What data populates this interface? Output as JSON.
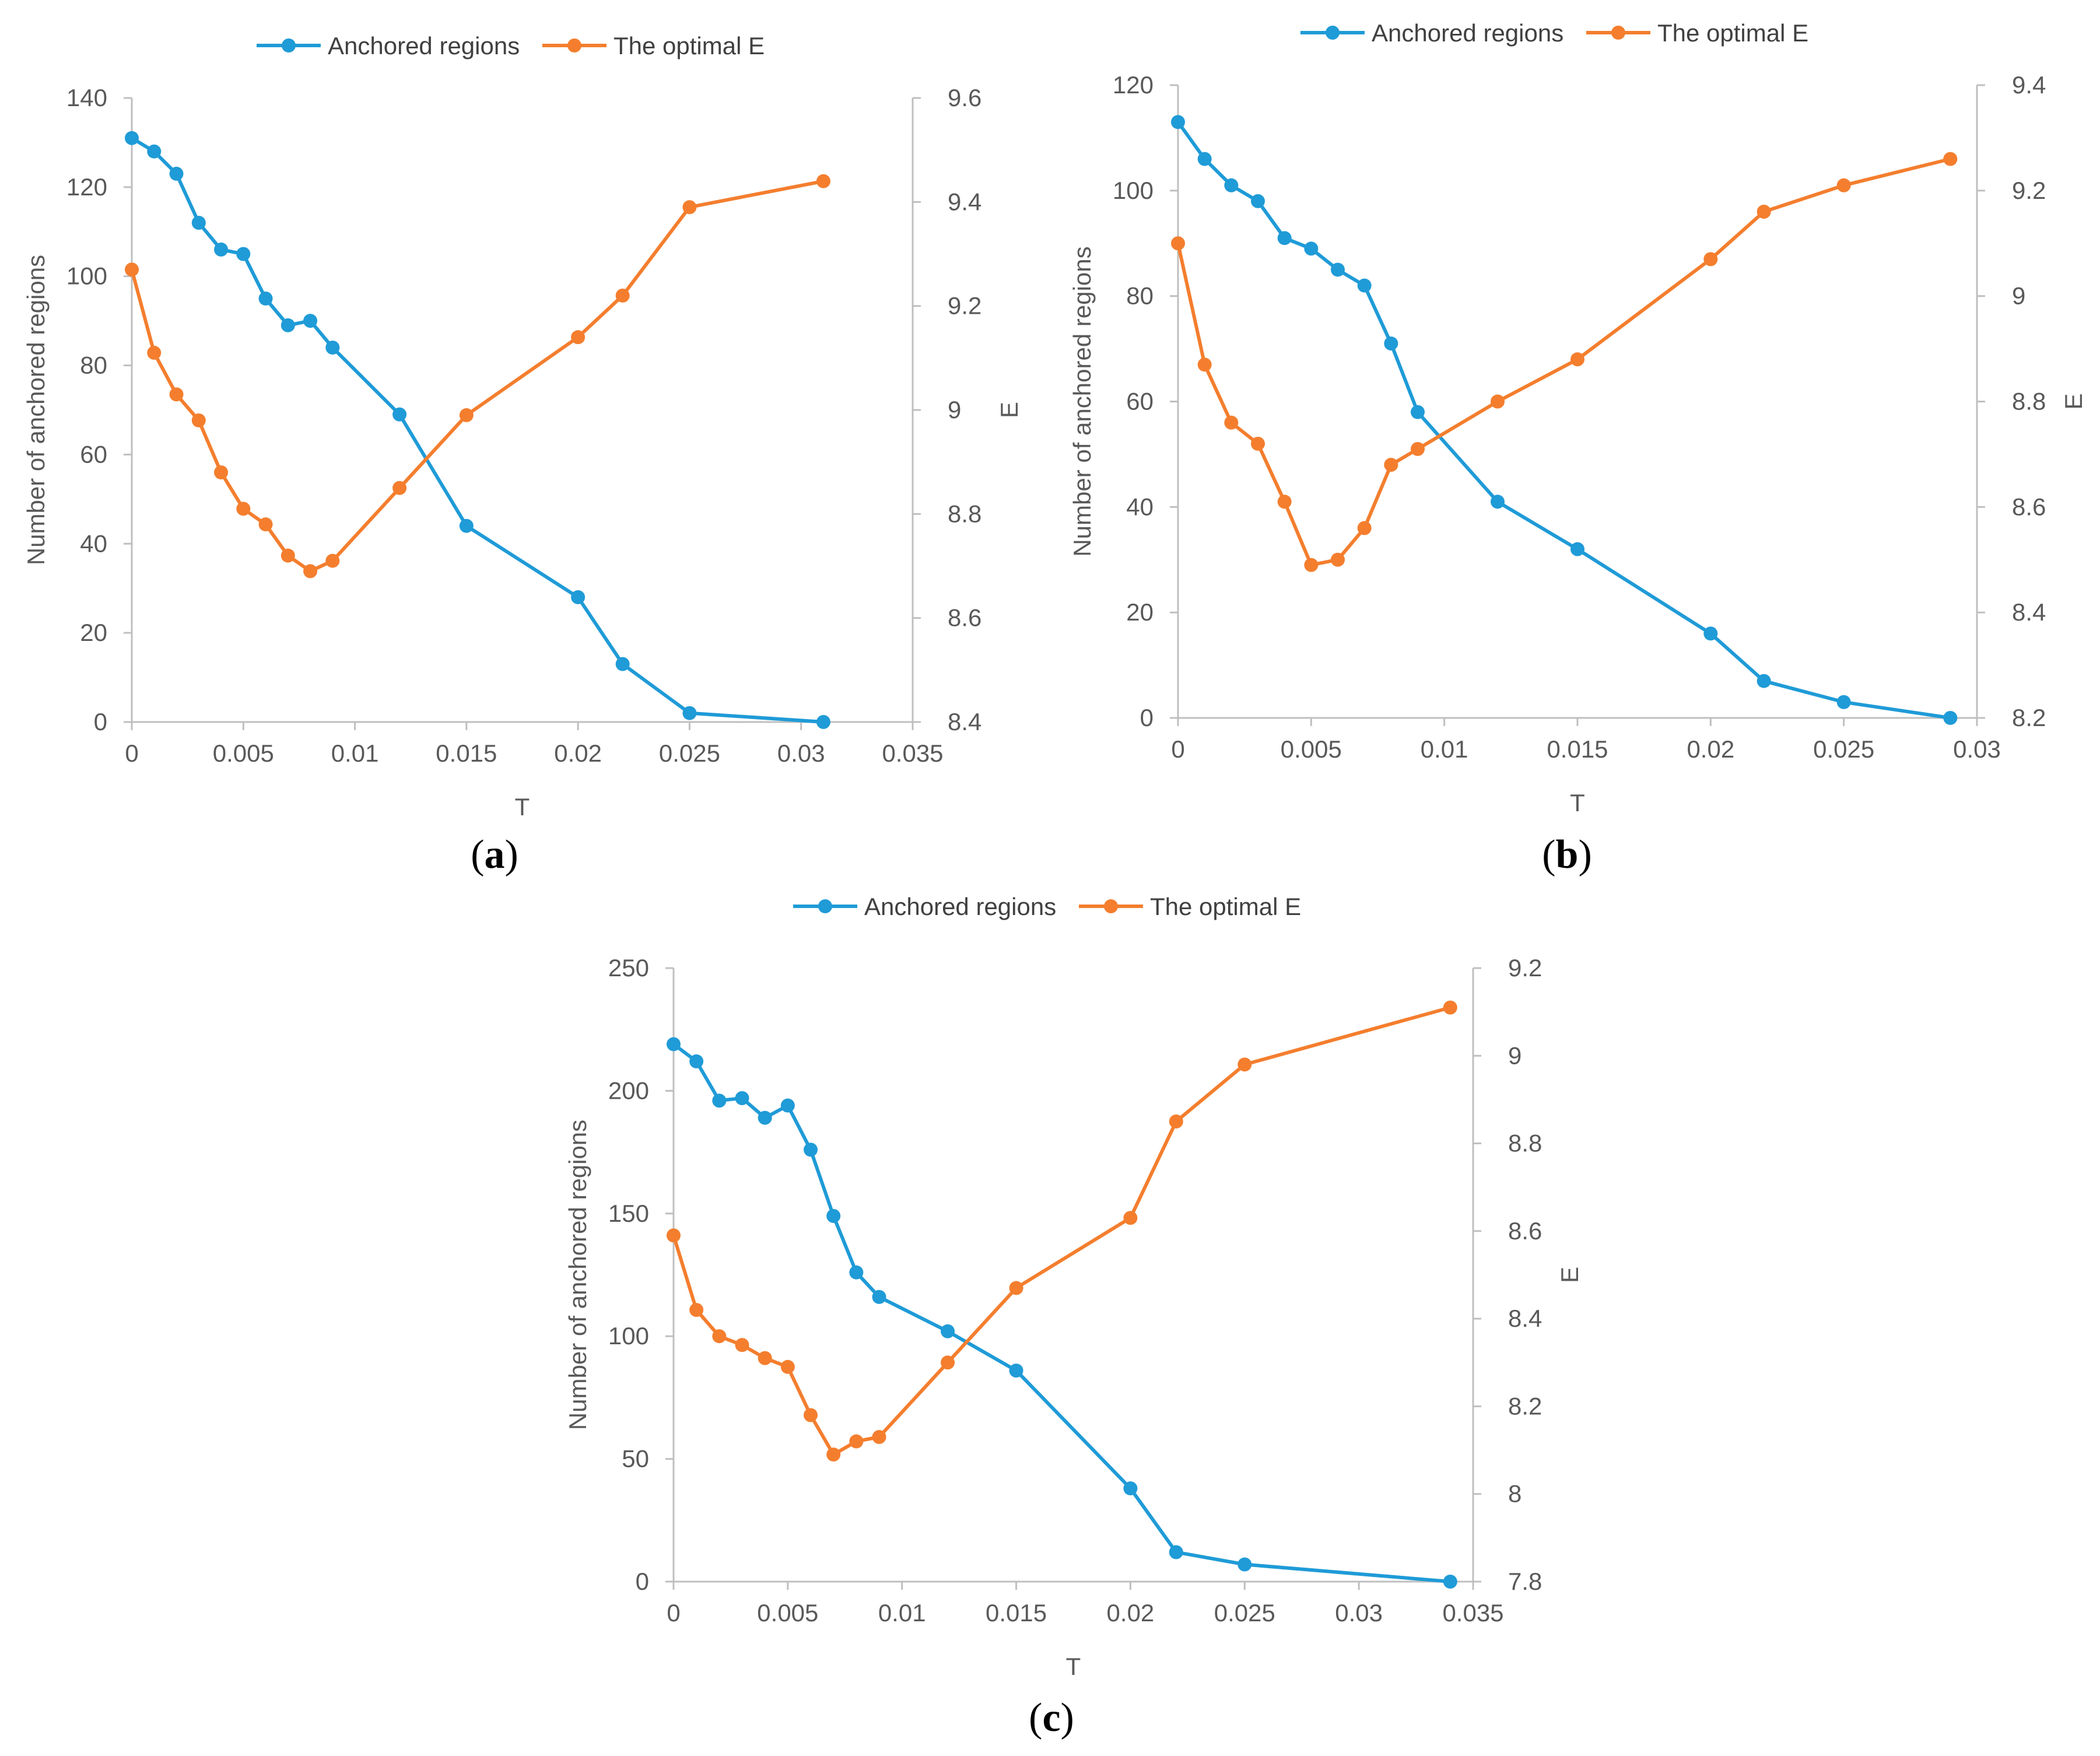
{
  "colors": {
    "blue": "#1F9BD7",
    "orange": "#F47E2E",
    "axis": "#BFBFBF",
    "text": "#595959"
  },
  "chart_data": [
    {
      "panel_label": "a",
      "type": "line",
      "legend": {
        "placement": "top",
        "entries": [
          "Anchored regions",
          "The optimal E"
        ]
      },
      "xlabel": "T",
      "ylabel": "Number of anchored regions",
      "y2label": "E",
      "xlim": [
        0,
        0.035
      ],
      "ylim": [
        0,
        140
      ],
      "y2lim": [
        8.4,
        9.6
      ],
      "x_ticks": [
        "0",
        "0.005",
        "0.01",
        "0.015",
        "0.02",
        "0.025",
        "0.03",
        "0.035"
      ],
      "y_ticks": [
        "0",
        "20",
        "40",
        "60",
        "80",
        "100",
        "120",
        "140"
      ],
      "y2_ticks": [
        "8.4",
        "8.6",
        "8.8",
        "9",
        "9.2",
        "9.4",
        "9.6"
      ],
      "series": [
        {
          "name": "Anchored regions",
          "axis": "left",
          "x": [
            0,
            0.001,
            0.002,
            0.003,
            0.004,
            0.005,
            0.006,
            0.007,
            0.008,
            0.009,
            0.012,
            0.015,
            0.02,
            0.022,
            0.025,
            0.031
          ],
          "values": [
            131,
            128,
            123,
            112,
            106,
            105,
            95,
            89,
            90,
            84,
            69,
            44,
            28,
            13,
            2,
            0
          ]
        },
        {
          "name": "The optimal E",
          "axis": "right",
          "x": [
            0,
            0.001,
            0.002,
            0.003,
            0.004,
            0.005,
            0.006,
            0.007,
            0.008,
            0.009,
            0.012,
            0.015,
            0.02,
            0.022,
            0.025,
            0.031
          ],
          "values": [
            9.27,
            9.11,
            9.03,
            8.98,
            8.88,
            8.81,
            8.78,
            8.72,
            8.69,
            8.71,
            8.85,
            8.99,
            9.14,
            9.22,
            9.39,
            9.44
          ]
        }
      ]
    },
    {
      "panel_label": "b",
      "type": "line",
      "legend": {
        "placement": "top",
        "entries": [
          "Anchored regions",
          "The optimal E"
        ]
      },
      "xlabel": "T",
      "ylabel": "Number of anchored regions",
      "y2label": "E",
      "xlim": [
        0,
        0.03
      ],
      "ylim": [
        0,
        120
      ],
      "y2lim": [
        8.2,
        9.4
      ],
      "x_ticks": [
        "0",
        "0.005",
        "0.01",
        "0.015",
        "0.02",
        "0.025",
        "0.03"
      ],
      "y_ticks": [
        "0",
        "20",
        "40",
        "60",
        "80",
        "100",
        "120"
      ],
      "y2_ticks": [
        "8.2",
        "8.4",
        "8.6",
        "8.8",
        "9",
        "9.2",
        "9.4"
      ],
      "series": [
        {
          "name": "Anchored regions",
          "axis": "left",
          "x": [
            0,
            0.001,
            0.002,
            0.003,
            0.004,
            0.005,
            0.006,
            0.007,
            0.008,
            0.009,
            0.012,
            0.015,
            0.02,
            0.022,
            0.025,
            0.029
          ],
          "values": [
            113,
            106,
            101,
            98,
            91,
            89,
            85,
            82,
            71,
            58,
            41,
            32,
            16,
            7,
            3,
            0
          ]
        },
        {
          "name": "The optimal E",
          "axis": "right",
          "x": [
            0,
            0.001,
            0.002,
            0.003,
            0.004,
            0.005,
            0.006,
            0.007,
            0.008,
            0.009,
            0.012,
            0.015,
            0.02,
            0.022,
            0.025,
            0.029
          ],
          "values": [
            9.1,
            8.87,
            8.76,
            8.72,
            8.61,
            8.49,
            8.5,
            8.56,
            8.68,
            8.71,
            8.8,
            8.88,
            9.07,
            9.16,
            9.21,
            9.26
          ]
        }
      ]
    },
    {
      "panel_label": "c",
      "type": "line",
      "legend": {
        "placement": "top",
        "entries": [
          "Anchored regions",
          "The optimal E"
        ]
      },
      "xlabel": "T",
      "ylabel": "Number of anchored regions",
      "y2label": "E",
      "xlim": [
        0,
        0.035
      ],
      "ylim": [
        0,
        250
      ],
      "y2lim": [
        7.8,
        9.2
      ],
      "x_ticks": [
        "0",
        "0.005",
        "0.01",
        "0.015",
        "0.02",
        "0.025",
        "0.03",
        "0.035"
      ],
      "y_ticks": [
        "0",
        "50",
        "100",
        "150",
        "200",
        "250"
      ],
      "y2_ticks": [
        "7.8",
        "8",
        "8.2",
        "8.4",
        "8.6",
        "8.8",
        "9",
        "9.2"
      ],
      "series": [
        {
          "name": "Anchored regions",
          "axis": "left",
          "x": [
            0,
            0.001,
            0.002,
            0.003,
            0.004,
            0.005,
            0.006,
            0.007,
            0.008,
            0.009,
            0.012,
            0.015,
            0.02,
            0.022,
            0.025,
            0.034
          ],
          "values": [
            219,
            212,
            196,
            197,
            189,
            194,
            176,
            149,
            126,
            116,
            102,
            86,
            38,
            12,
            7,
            0
          ]
        },
        {
          "name": "The optimal E",
          "axis": "right",
          "x": [
            0,
            0.001,
            0.002,
            0.003,
            0.004,
            0.005,
            0.006,
            0.007,
            0.008,
            0.009,
            0.012,
            0.015,
            0.02,
            0.022,
            0.025,
            0.034
          ],
          "values": [
            8.59,
            8.42,
            8.36,
            8.34,
            8.31,
            8.29,
            8.18,
            8.09,
            8.12,
            8.13,
            8.3,
            8.47,
            8.63,
            8.85,
            8.98,
            9.11
          ]
        }
      ]
    }
  ]
}
